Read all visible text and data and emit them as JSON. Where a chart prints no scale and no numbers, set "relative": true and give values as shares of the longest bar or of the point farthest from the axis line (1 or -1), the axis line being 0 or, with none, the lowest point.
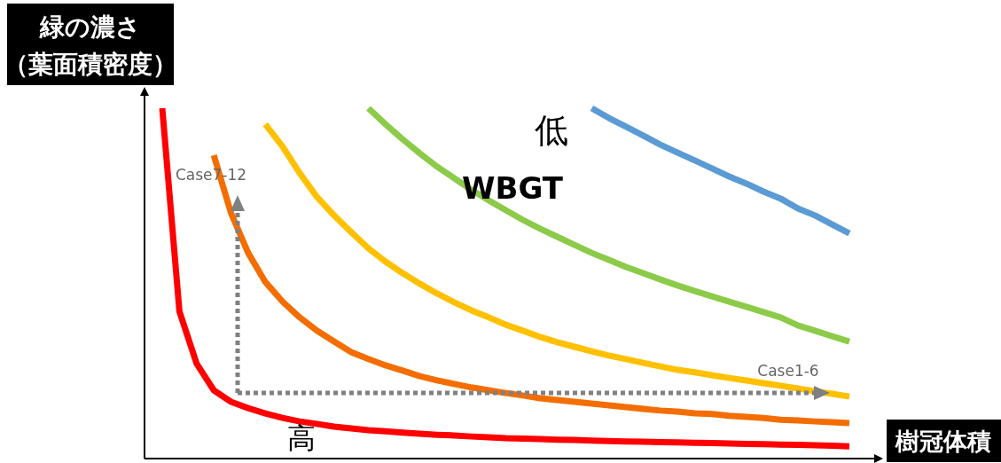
{
  "chart_data": {
    "type": "line",
    "relative": true,
    "xlabel": "樹冠体積",
    "ylabel": "緑の濃さ（葉面積密度）",
    "categories": [
      null,
      null,
      null,
      null,
      null,
      null,
      null,
      null,
      null,
      null,
      null,
      null,
      null,
      null,
      null,
      null,
      null,
      null,
      null,
      null,
      null,
      null,
      null,
      null,
      null,
      null,
      null,
      null,
      null,
      null,
      null,
      null,
      null,
      null,
      null,
      null,
      null,
      null,
      null,
      null,
      null
    ],
    "series": [
      {
        "color": "#ff0000",
        "values": [
          1.0,
          0.42,
          0.271,
          0.195,
          0.162,
          0.144,
          0.129,
          0.116,
          0.106,
          0.099,
          0.091,
          0.086,
          0.081,
          0.078,
          0.074,
          0.071,
          0.068,
          0.066,
          0.063,
          0.061,
          0.058,
          0.057,
          0.056,
          0.054,
          0.053,
          0.051,
          0.05,
          0.049,
          0.048,
          0.047,
          0.046,
          0.045,
          0.044,
          0.043,
          0.042,
          0.041,
          0.04,
          0.039,
          0.038,
          0.037,
          0.035
        ]
      },
      {
        "color": "#f46d00",
        "values": [
          null,
          null,
          null,
          0.866,
          0.701,
          0.587,
          0.504,
          0.448,
          0.403,
          0.365,
          0.334,
          0.304,
          0.284,
          0.266,
          0.251,
          0.235,
          0.223,
          0.213,
          0.203,
          0.195,
          0.187,
          0.18,
          0.172,
          0.167,
          0.162,
          0.157,
          0.152,
          0.147,
          0.142,
          0.137,
          0.134,
          0.129,
          0.127,
          0.122,
          0.119,
          0.116,
          0.111,
          0.109,
          0.106,
          0.104,
          0.101
        ]
      },
      {
        "color": "#ffc000",
        "values": [
          null,
          null,
          null,
          null,
          null,
          null,
          0.954,
          0.891,
          0.815,
          0.747,
          0.694,
          0.646,
          0.6,
          0.562,
          0.529,
          0.499,
          0.471,
          0.446,
          0.423,
          0.403,
          0.382,
          0.365,
          0.347,
          0.332,
          0.319,
          0.306,
          0.294,
          0.284,
          0.273,
          0.263,
          0.253,
          0.246,
          0.238,
          0.23,
          0.223,
          0.215,
          0.208,
          0.2,
          0.192,
          0.185,
          0.177
        ]
      },
      {
        "color": "#8ccb4a",
        "values": [
          null,
          null,
          null,
          null,
          null,
          null,
          null,
          null,
          null,
          null,
          null,
          null,
          1.0,
          0.954,
          0.911,
          0.871,
          0.833,
          0.8,
          0.767,
          0.737,
          0.709,
          0.681,
          0.656,
          0.633,
          0.61,
          0.587,
          0.567,
          0.547,
          0.529,
          0.511,
          0.494,
          0.478,
          0.463,
          0.448,
          0.433,
          0.418,
          0.403,
          0.38,
          0.365,
          0.349,
          0.334
        ]
      },
      {
        "color": "#5b9bd5",
        "values": [
          null,
          null,
          null,
          null,
          null,
          null,
          null,
          null,
          null,
          null,
          null,
          null,
          null,
          null,
          null,
          null,
          null,
          null,
          null,
          null,
          null,
          null,
          null,
          null,
          null,
          1.0,
          0.972,
          0.947,
          0.922,
          0.896,
          0.873,
          0.851,
          0.828,
          0.805,
          0.785,
          0.762,
          0.742,
          0.714,
          0.694,
          0.668,
          0.643
        ]
      }
    ],
    "annotations": [
      "低",
      "WBGT",
      "Case7-12",
      "Case1-6",
      "高"
    ]
  }
}
